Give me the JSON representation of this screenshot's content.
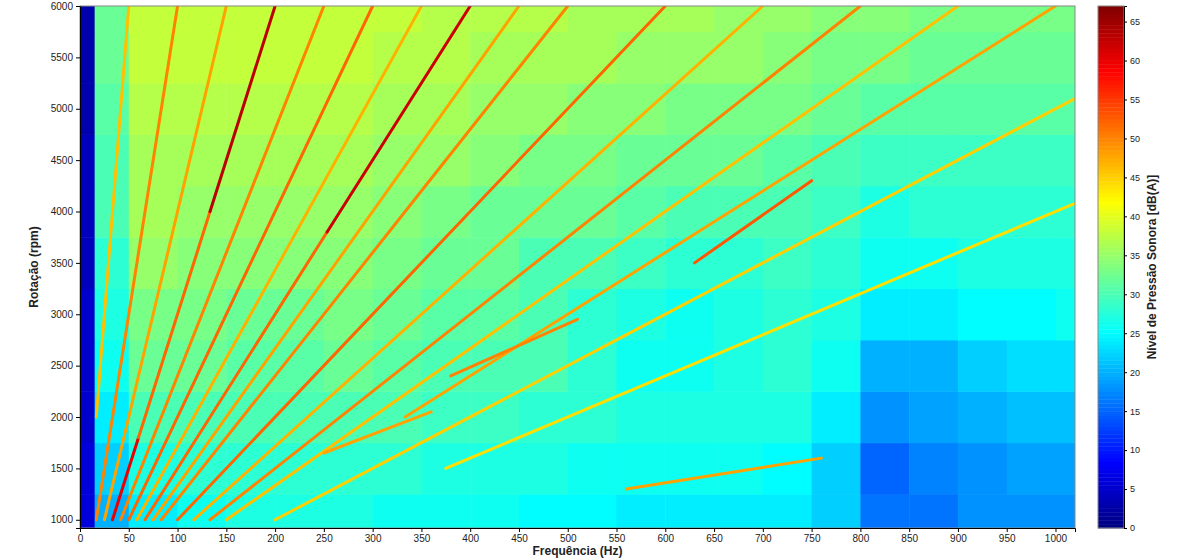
{
  "chart_data": {
    "type": "heatmap",
    "x_label": "Frequência (Hz)",
    "y_label": "Rotação (rpm)",
    "colorbar_label": "Nível de Pressão Sonora [dB(A)]",
    "xlim": [
      0,
      1020
    ],
    "ylim": [
      920,
      6000
    ],
    "xticks": [
      0,
      50,
      100,
      150,
      200,
      250,
      300,
      350,
      400,
      450,
      500,
      550,
      600,
      650,
      700,
      750,
      800,
      850,
      900,
      950,
      1000
    ],
    "yticks": [
      1000,
      1500,
      2000,
      2500,
      3000,
      3500,
      4000,
      4500,
      5000,
      5500,
      6000
    ],
    "grid": false,
    "colorbar_range": [
      0,
      67
    ],
    "colorbar_ticks": [
      0,
      5,
      10,
      15,
      20,
      25,
      30,
      35,
      40,
      45,
      50,
      55,
      60,
      65
    ],
    "x_edges": [
      0,
      15,
      50,
      100,
      150,
      200,
      250,
      300,
      350,
      400,
      450,
      500,
      550,
      600,
      650,
      700,
      750,
      800,
      850,
      900,
      950,
      1000,
      1020
    ],
    "y_edges": [
      920,
      1250,
      1750,
      2250,
      2750,
      3250,
      3750,
      4250,
      4750,
      5250,
      5750,
      6000
    ],
    "z": [
      [
        6,
        20,
        24,
        26,
        27,
        27,
        27,
        26,
        26,
        26,
        25,
        25,
        24,
        24,
        24,
        24,
        22,
        16,
        16,
        18,
        18,
        18
      ],
      [
        6,
        22,
        27,
        28,
        28,
        28,
        28,
        28,
        27,
        27,
        27,
        26,
        26,
        26,
        26,
        25,
        22,
        15,
        17,
        18,
        19,
        19
      ],
      [
        5,
        24,
        30,
        30,
        30,
        30,
        30,
        30,
        29,
        29,
        28,
        28,
        27,
        27,
        27,
        27,
        24,
        18,
        19,
        20,
        21,
        21
      ],
      [
        5,
        26,
        32,
        32,
        31,
        31,
        32,
        31,
        30,
        30,
        30,
        28,
        26,
        26,
        27,
        28,
        26,
        20,
        20,
        22,
        23,
        23
      ],
      [
        5,
        27,
        33,
        33,
        32,
        32,
        33,
        32,
        31,
        31,
        30,
        28,
        27,
        26,
        27,
        28,
        27,
        24,
        24,
        25,
        25,
        26
      ],
      [
        4,
        28,
        35,
        34,
        34,
        34,
        34,
        33,
        32,
        32,
        30,
        30,
        29,
        28,
        28,
        29,
        28,
        26,
        26,
        27,
        27,
        27
      ],
      [
        4,
        30,
        36,
        35,
        35,
        35,
        35,
        34,
        33,
        32,
        32,
        32,
        31,
        30,
        30,
        30,
        29,
        27,
        28,
        28,
        28,
        28
      ],
      [
        4,
        30,
        36,
        36,
        36,
        36,
        36,
        35,
        35,
        34,
        33,
        33,
        32,
        32,
        32,
        31,
        30,
        29,
        29,
        29,
        29,
        29
      ],
      [
        3,
        31,
        37,
        37,
        37,
        37,
        37,
        36,
        36,
        35,
        35,
        34,
        34,
        33,
        33,
        33,
        32,
        31,
        31,
        31,
        31,
        31
      ],
      [
        3,
        32,
        38,
        38,
        38,
        38,
        38,
        37,
        37,
        36,
        36,
        36,
        35,
        35,
        35,
        34,
        33,
        33,
        32,
        32,
        32,
        32
      ],
      [
        3,
        32,
        38,
        38,
        38,
        38,
        38,
        38,
        37,
        37,
        37,
        36,
        36,
        36,
        35,
        35,
        34,
        34,
        33,
        33,
        33,
        33
      ]
    ],
    "series": [
      {
        "x": [
          16.7,
          50
        ],
        "values": [
          2000,
          6000
        ],
        "level": 46
      },
      {
        "x": [
          16.7,
          100
        ],
        "values": [
          1000,
          6000
        ],
        "level": 50
      },
      {
        "x": [
          25,
          150
        ],
        "values": [
          1000,
          6000
        ],
        "level": 48
      },
      {
        "x": [
          33.3,
          60
        ],
        "values": [
          1000,
          1800
        ],
        "level": 60
      },
      {
        "x": [
          60,
          133.3
        ],
        "values": [
          1800,
          4000
        ],
        "level": 52
      },
      {
        "x": [
          133.3,
          200
        ],
        "values": [
          4000,
          6000
        ],
        "level": 63
      },
      {
        "x": [
          41.7,
          250
        ],
        "values": [
          1000,
          6000
        ],
        "level": 50
      },
      {
        "x": [
          50,
          300
        ],
        "values": [
          1000,
          6000
        ],
        "level": 52
      },
      {
        "x": [
          58.3,
          350
        ],
        "values": [
          1000,
          6000
        ],
        "level": 47
      },
      {
        "x": [
          66.7,
          253.3
        ],
        "values": [
          1000,
          3800
        ],
        "level": 52
      },
      {
        "x": [
          253.3,
          400
        ],
        "values": [
          3800,
          6000
        ],
        "level": 62
      },
      {
        "x": [
          75,
          450
        ],
        "values": [
          1000,
          6000
        ],
        "level": 48
      },
      {
        "x": [
          83.3,
          500
        ],
        "values": [
          1000,
          6000
        ],
        "level": 50
      },
      {
        "x": [
          100,
          600
        ],
        "values": [
          1000,
          6000
        ],
        "level": 52
      },
      {
        "x": [
          116.7,
          700
        ],
        "values": [
          1000,
          6000
        ],
        "level": 47
      },
      {
        "x": [
          133.3,
          800
        ],
        "values": [
          1000,
          6000
        ],
        "level": 50
      },
      {
        "x": [
          150,
          900
        ],
        "values": [
          1000,
          6000
        ],
        "level": 46
      },
      {
        "x": [
          333.3,
          1000
        ],
        "values": [
          2000,
          6000
        ],
        "level": 48
      },
      {
        "x": [
          200,
          1020
        ],
        "values": [
          1000,
          5100
        ],
        "level": 45
      },
      {
        "x": [
          375,
          1020
        ],
        "values": [
          1500,
          4080
        ],
        "level": 44
      },
      {
        "x": [
          560,
          760
        ],
        "values": [
          1300,
          1600
        ],
        "level": 48
      },
      {
        "x": [
          630,
          750
        ],
        "values": [
          3500,
          4300
        ],
        "level": 53
      },
      {
        "x": [
          380,
          510
        ],
        "values": [
          2400,
          2950
        ],
        "level": 50
      },
      {
        "x": [
          250,
          360
        ],
        "values": [
          1650,
          2050
        ],
        "level": 48
      }
    ]
  }
}
